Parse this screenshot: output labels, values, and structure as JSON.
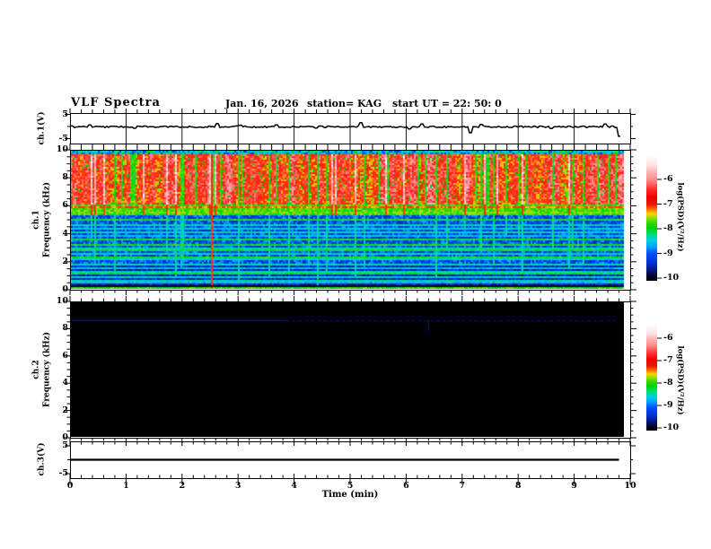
{
  "header": {
    "title": "VLF Spectra",
    "date": "Jan. 16, 2026",
    "station": "station= KAG",
    "start_ut": "start UT =  22: 50: 0"
  },
  "axes": {
    "x_label": "Time  (min)",
    "x_ticks": [
      "0",
      "1",
      "2",
      "3",
      "4",
      "5",
      "6",
      "7",
      "8",
      "9",
      "10"
    ],
    "freq_ticks": [
      "0",
      "2",
      "4",
      "6",
      "8",
      "10"
    ],
    "volt_ticks": [
      "5",
      "-5"
    ]
  },
  "panel_labels": {
    "ch1v": "ch.1(V)",
    "ch1_row1": "ch.1",
    "ch1_row2": "Frequency (kHz)",
    "ch2_row1": "ch.2",
    "ch2_row2": "Frequency (kHz)",
    "ch3v": "ch.3(V)"
  },
  "colorbar": {
    "label": "log(PSD)(V²/Hz)",
    "ticks": [
      "-6",
      "-7",
      "-8",
      "-9",
      "-10"
    ]
  },
  "colors": {
    "ch2_line": "#0000dd",
    "frame": "#000000",
    "palette_top_to_bottom": [
      "#ffffff",
      "#ff8c8c",
      "#f00000",
      "#ffd000",
      "#00d400",
      "#00d0e0",
      "#0050ff",
      "#000000"
    ]
  },
  "chart_data": [
    {
      "type": "line",
      "name": "ch1_voltage",
      "panel": "ch.1(V)",
      "xlim": [
        0,
        10
      ],
      "ylim": [
        -5,
        5
      ],
      "baseline_v": 0,
      "noise_amplitude_v": 0.3,
      "data_end_min": 9.85,
      "seed": 7,
      "impulses": [
        [
          0.35,
          0.7
        ],
        [
          1.15,
          -0.6
        ],
        [
          2.64,
          1.3
        ],
        [
          3.05,
          0.6
        ],
        [
          3.7,
          0.8
        ],
        [
          4.4,
          -0.5
        ],
        [
          5.2,
          1.6
        ],
        [
          6.05,
          -0.9
        ],
        [
          6.28,
          1.1
        ],
        [
          7.15,
          -2.4
        ],
        [
          7.35,
          0.9
        ],
        [
          8.6,
          -0.7
        ],
        [
          9.55,
          1.1
        ],
        [
          9.82,
          -3.8
        ]
      ]
    },
    {
      "type": "heatmap",
      "name": "ch1_spectrogram",
      "panel": "ch.1 Frequency (kHz)",
      "xlim": [
        0,
        10
      ],
      "ylim": [
        0,
        10
      ],
      "units": "kHz",
      "data_end_min": 9.87,
      "seed": 42,
      "colorbar": {
        "label": "log(PSD)(V²/Hz)",
        "range": [
          -10,
          -6
        ]
      },
      "bands": [
        {
          "f_khz": [
            9.75,
            10.0
          ],
          "level": -9.0,
          "desc": "weak speckled band at top edge"
        },
        {
          "f_khz": [
            6.15,
            9.75
          ],
          "level": -6.9,
          "desc": "intense hiss, red/white with saturated vertical streaks"
        },
        {
          "f_khz": [
            5.35,
            6.15
          ],
          "level": -7.8,
          "desc": "green transition band"
        },
        {
          "f_khz": [
            0.0,
            5.35
          ],
          "level": -9.4,
          "desc": "weak blue background with harmonic lines and streaks"
        }
      ],
      "harmonic_lines": [
        [
          6.3,
          -7.6
        ],
        [
          5.85,
          -7.15
        ],
        [
          5.55,
          -7.7
        ],
        [
          5.0,
          -7.9
        ],
        [
          4.62,
          -8.3
        ],
        [
          4.38,
          -8.4
        ],
        [
          4.1,
          -8.3
        ],
        [
          3.82,
          -8.5
        ],
        [
          3.55,
          -8.0
        ],
        [
          3.2,
          -7.9
        ],
        [
          2.95,
          -8.3
        ],
        [
          2.78,
          -8.0
        ],
        [
          2.58,
          -8.4
        ],
        [
          2.32,
          -7.9
        ],
        [
          2.1,
          -8.4
        ],
        [
          1.78,
          -8.3
        ],
        [
          1.5,
          -8.5
        ],
        [
          1.28,
          -8.4
        ],
        [
          1.05,
          -8.0
        ],
        [
          0.88,
          -8.4
        ],
        [
          0.62,
          -8.3
        ],
        [
          0.45,
          -8.5
        ],
        [
          0.12,
          -7.8
        ]
      ],
      "vertical_streaks": {
        "level_cyan": -8.35,
        "level_red": -7.0,
        "red_fraction": 0.012
      }
    },
    {
      "type": "heatmap",
      "name": "ch2_spectrogram",
      "panel": "ch.2 Frequency (kHz)",
      "xlim": [
        0,
        10
      ],
      "ylim": [
        0,
        10
      ],
      "units": "kHz",
      "data_end_min": 9.87,
      "background_level": -10,
      "colorbar": {
        "label": "log(PSD)(V²/Hz)",
        "range": [
          -10,
          -6
        ]
      },
      "lines": [
        {
          "f_khz": 8.6,
          "level": -9.3,
          "solid_until_min": 3.85,
          "end_min": 9.8
        }
      ],
      "blip": {
        "t_min": 6.4,
        "f_khz": [
          7.8,
          8.6
        ]
      }
    },
    {
      "type": "line",
      "name": "ch3_voltage",
      "panel": "ch.3(V)",
      "xlim": [
        0,
        10
      ],
      "ylim": [
        -5,
        5
      ],
      "value_v": 0,
      "data_end_min": 9.8
    }
  ]
}
